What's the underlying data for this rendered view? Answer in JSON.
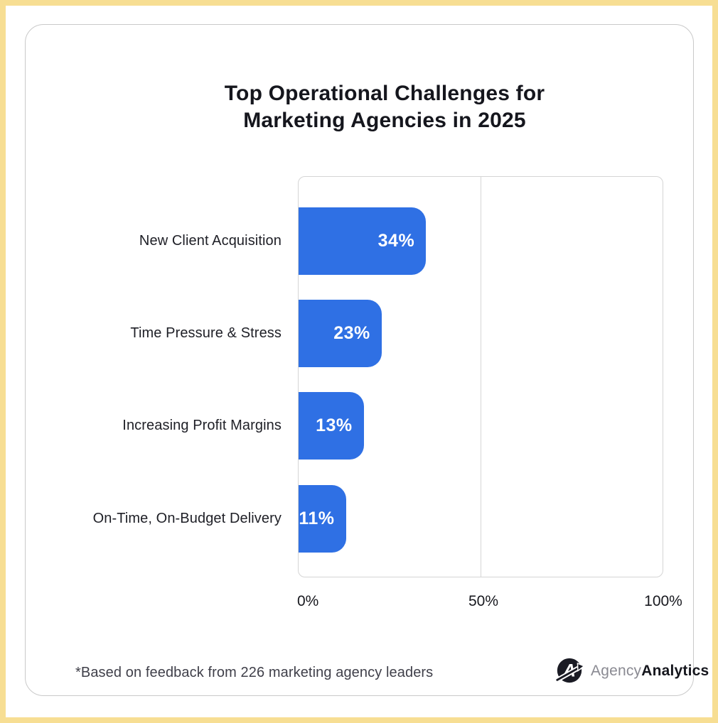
{
  "page": {
    "frame_color": "#F7DE93",
    "card_border_color": "#C9C9C9"
  },
  "chart_data": {
    "type": "bar",
    "orientation": "horizontal",
    "title": "Top Operational Challenges for\nMarketing Agencies in 2025",
    "categories": [
      "New Client Acquisition",
      "Time Pressure & Stress",
      "Increasing Profit Margins",
      "On-Time, On-Budget Delivery"
    ],
    "values": [
      34,
      23,
      13,
      11
    ],
    "value_labels": [
      "34%",
      "23%",
      "13%",
      "11%"
    ],
    "x_ticks": [
      "0%",
      "50%",
      "100%"
    ],
    "xlim": [
      0,
      100
    ],
    "xlabel": "",
    "ylabel": "",
    "grid": "single vertical gridline at 50%, rounded plot border, no horizontal gridlines",
    "legend": "none",
    "bar_color": "#2F70E4",
    "value_label_color": "#FFFFFF"
  },
  "layout": {
    "bar_display_pct": [
      35.0,
      22.8,
      17.9,
      13.0
    ]
  },
  "footer": {
    "note": "*Based on feedback from 226 marketing agency leaders",
    "logo_text_light": "Agency",
    "logo_text_bold": "Analytics"
  }
}
